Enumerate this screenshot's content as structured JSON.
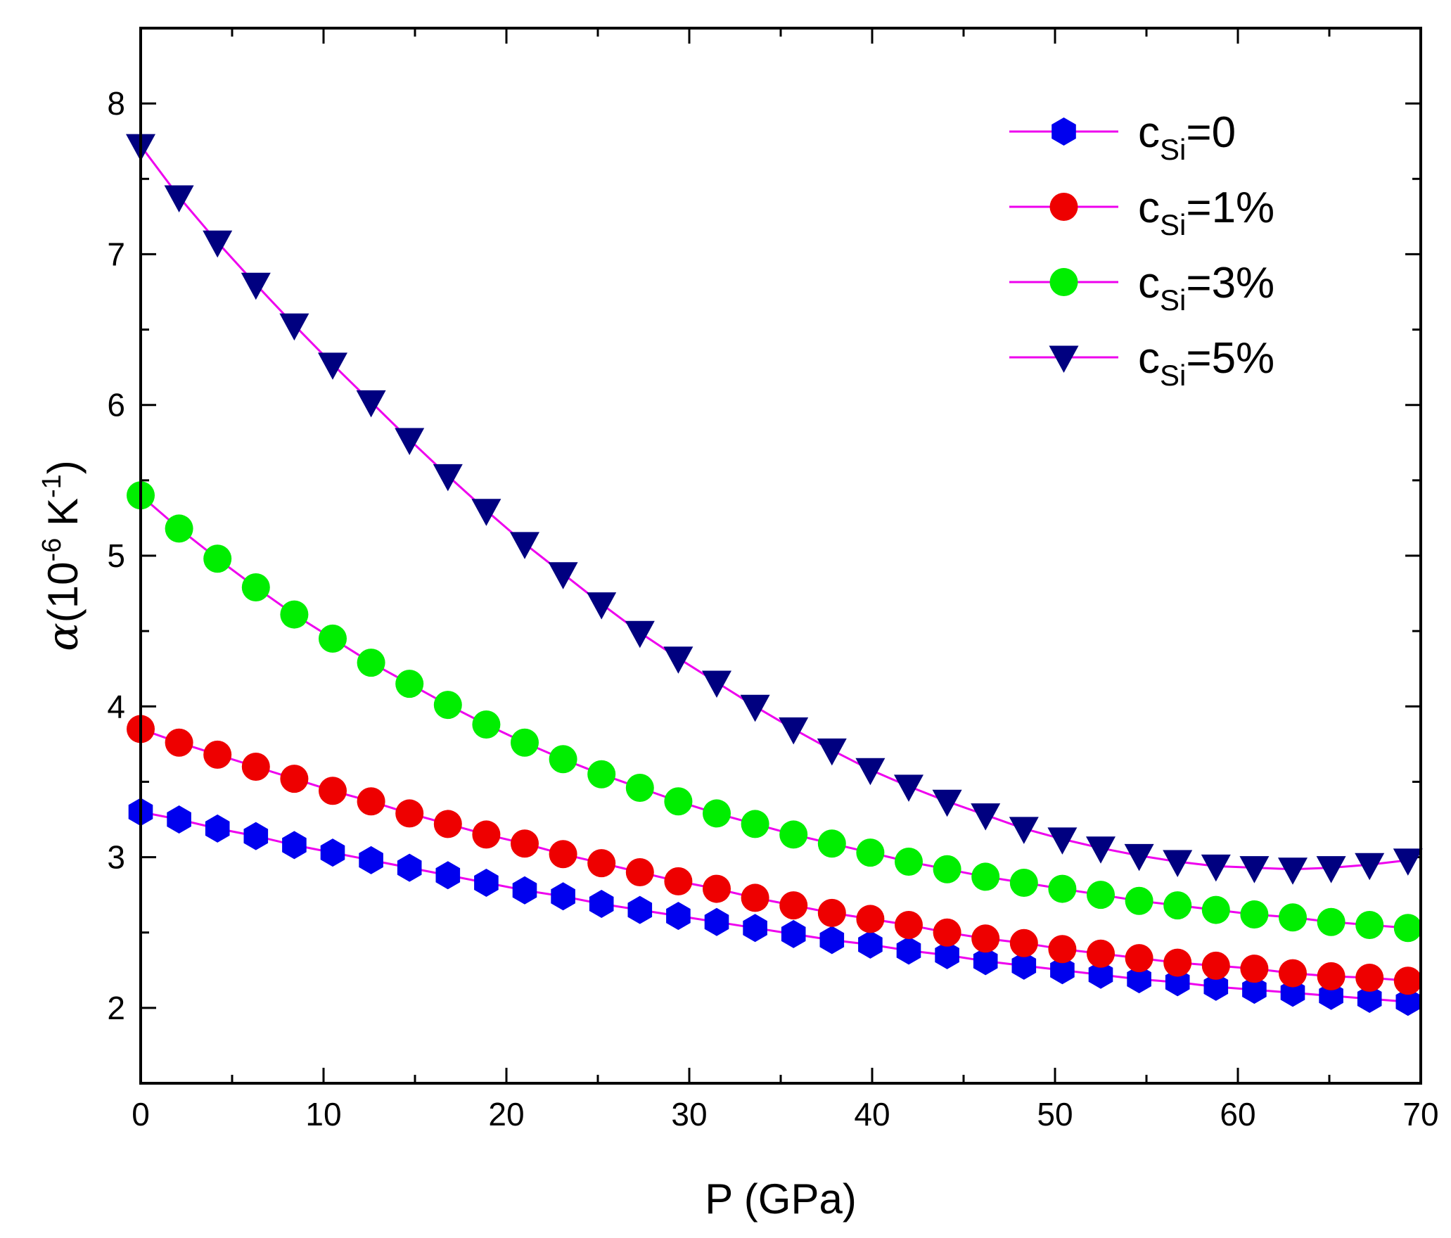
{
  "chart_data": {
    "type": "line",
    "title": "",
    "xlabel": "P (GPa)",
    "ylabel": {
      "symbol": "α",
      "text_before": "(10",
      "exp1": "-6",
      "text_mid": " K",
      "exp2": "-1",
      "text_after": ")"
    },
    "xlim": [
      0,
      70
    ],
    "ylim": [
      1.5,
      8.5
    ],
    "xticks": [
      "0",
      "10",
      "20",
      "30",
      "40",
      "50",
      "60",
      "70"
    ],
    "yticks": [
      "2",
      "3",
      "4",
      "5",
      "6",
      "7",
      "8"
    ],
    "grid": false,
    "legend_position": "top-right",
    "line_color": "#ee00ee",
    "x": [
      0,
      2.1,
      4.2,
      6.3,
      8.4,
      10.5,
      12.6,
      14.7,
      16.8,
      18.9,
      21.0,
      23.1,
      25.2,
      27.3,
      29.4,
      31.5,
      33.6,
      35.7,
      37.8,
      39.9,
      42.0,
      44.1,
      46.2,
      48.3,
      50.4,
      52.5,
      54.6,
      56.7,
      58.8,
      60.9,
      63.0,
      65.1,
      67.2,
      69.3
    ],
    "series": [
      {
        "name": "c_Si=0",
        "label_main": "c",
        "label_sub": "Si",
        "label_rest": "=0",
        "marker": "hexagon",
        "color": "#0000ee",
        "values": [
          3.3,
          3.25,
          3.19,
          3.14,
          3.08,
          3.03,
          2.98,
          2.93,
          2.88,
          2.83,
          2.78,
          2.74,
          2.69,
          2.65,
          2.61,
          2.57,
          2.53,
          2.49,
          2.45,
          2.42,
          2.38,
          2.35,
          2.31,
          2.28,
          2.25,
          2.22,
          2.19,
          2.17,
          2.14,
          2.12,
          2.1,
          2.08,
          2.06,
          2.04
        ]
      },
      {
        "name": "c_Si=1%",
        "label_main": "c",
        "label_sub": "Si",
        "label_rest": "=1%",
        "marker": "circle",
        "color": "#ee0000",
        "values": [
          3.85,
          3.76,
          3.68,
          3.6,
          3.52,
          3.44,
          3.37,
          3.29,
          3.22,
          3.15,
          3.09,
          3.02,
          2.96,
          2.9,
          2.84,
          2.79,
          2.73,
          2.68,
          2.63,
          2.59,
          2.55,
          2.5,
          2.46,
          2.43,
          2.39,
          2.36,
          2.33,
          2.3,
          2.28,
          2.26,
          2.23,
          2.21,
          2.2,
          2.18
        ]
      },
      {
        "name": "c_Si=3%",
        "label_main": "c",
        "label_sub": "Si",
        "label_rest": "=3%",
        "marker": "circle",
        "color": "#00ee00",
        "values": [
          5.4,
          5.18,
          4.98,
          4.79,
          4.61,
          4.45,
          4.29,
          4.15,
          4.01,
          3.88,
          3.76,
          3.65,
          3.55,
          3.46,
          3.37,
          3.29,
          3.22,
          3.15,
          3.09,
          3.03,
          2.97,
          2.92,
          2.87,
          2.83,
          2.79,
          2.75,
          2.71,
          2.68,
          2.65,
          2.62,
          2.6,
          2.57,
          2.55,
          2.53
        ]
      },
      {
        "name": "c_Si=5%",
        "label_main": "c",
        "label_sub": "Si",
        "label_rest": "=5%",
        "marker": "triangle-down",
        "color": "#000080",
        "values": [
          7.72,
          7.38,
          7.08,
          6.8,
          6.53,
          6.27,
          6.02,
          5.77,
          5.53,
          5.3,
          5.08,
          4.88,
          4.68,
          4.49,
          4.32,
          4.16,
          4.0,
          3.85,
          3.71,
          3.58,
          3.47,
          3.37,
          3.28,
          3.19,
          3.12,
          3.06,
          3.01,
          2.97,
          2.94,
          2.93,
          2.92,
          2.93,
          2.95,
          2.98
        ]
      }
    ]
  }
}
